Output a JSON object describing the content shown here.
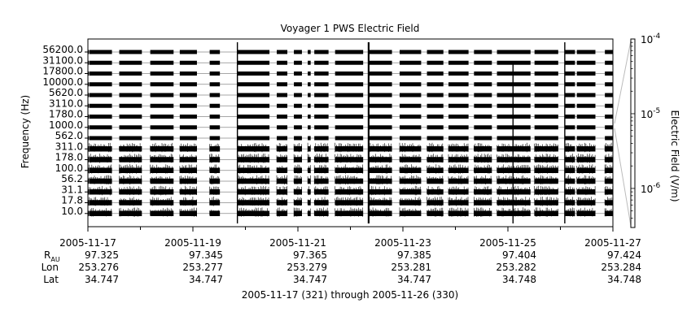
{
  "chart_data": {
    "type": "line",
    "title": "Voyager 1 PWS Electric Field",
    "ylabel": "Frequency (Hz)",
    "y_ticks": [
      "56200.0",
      "31100.0",
      "17800.0",
      "10000.0",
      "5620.0",
      "3110.0",
      "1780.0",
      "1000.0",
      "562.0",
      "311.0",
      "178.0",
      "100.0",
      "56.2",
      "31.1",
      "17.8",
      "10.0"
    ],
    "channels": [
      "56200.0",
      "31100.0",
      "17800.0",
      "10000.0",
      "5620.0",
      "3110.0",
      "1780.0",
      "1000.0",
      "562.0",
      "311.0",
      "178.0",
      "100.0",
      "56.2",
      "31.1",
      "17.8",
      "10.0"
    ],
    "xlim": [
      "2005-11-17",
      "2005-11-27"
    ],
    "x_ticks": [
      "2005-11-17",
      "2005-11-19",
      "2005-11-21",
      "2005-11-23",
      "2005-11-25",
      "2005-11-27"
    ],
    "data_segments": [
      [
        "2005-11-17 00:00",
        "2005-11-17 00:20"
      ],
      [
        "2005-11-17 00:35",
        "2005-11-17 11:00"
      ],
      [
        "2005-11-17 14:20",
        "2005-11-18 00:40"
      ],
      [
        "2005-11-18 04:30",
        "2005-11-18 15:10"
      ],
      [
        "2005-11-18 18:00",
        "2005-11-19 01:50"
      ],
      [
        "2005-11-19 07:40",
        "2005-11-19 12:20"
      ],
      [
        "2005-11-19 20:20",
        "2005-11-20 11:00"
      ],
      [
        "2005-11-20 14:20",
        "2005-11-20 19:10"
      ],
      [
        "2005-11-20 22:10",
        "2005-11-21 01:50"
      ],
      [
        "2005-11-21 04:30",
        "2005-11-21 05:50"
      ],
      [
        "2005-11-21 07:30",
        "2005-11-21 14:00"
      ],
      [
        "2005-11-21 17:00",
        "2005-11-22 05:50"
      ],
      [
        "2005-11-22 08:30",
        "2005-11-22 19:00"
      ],
      [
        "2005-11-22 22:30",
        "2005-11-23 08:20"
      ],
      [
        "2005-11-23 11:00",
        "2005-11-23 18:30"
      ],
      [
        "2005-11-23 20:50",
        "2005-11-24 06:00"
      ],
      [
        "2005-11-24 08:30",
        "2005-11-24 16:40"
      ],
      [
        "2005-11-24 19:00",
        "2005-11-25 10:20"
      ],
      [
        "2005-11-25 12:10",
        "2005-11-25 23:00"
      ],
      [
        "2005-11-26 02:00",
        "2005-11-26 06:40"
      ],
      [
        "2005-11-26 07:30",
        "2005-11-26 16:00"
      ],
      [
        "2005-11-26 20:20",
        "2005-11-27 00:00"
      ]
    ],
    "spikes": [
      "2005-11-19 20:20",
      "2005-11-22 08:20",
      "2005-11-25 02:20",
      "2005-11-26 02:00"
    ],
    "colorbar": {
      "label": "Electric Field (V/m)",
      "scale": "log",
      "range": [
        3e-07,
        0.0001
      ],
      "ticks": [
        {
          "value": 0.0001,
          "base": "10",
          "exp": "-4"
        },
        {
          "value": 1e-05,
          "base": "10",
          "exp": "-5"
        },
        {
          "value": 1e-06,
          "base": "10",
          "exp": "-6"
        }
      ]
    },
    "ephemeris": {
      "r_label_main": "R",
      "r_label_sub": "AU",
      "lon_label": "Lon",
      "lat_label": "Lat",
      "r": [
        "97.325",
        "97.345",
        "97.365",
        "97.385",
        "97.404",
        "97.424"
      ],
      "lon": [
        "253.276",
        "253.277",
        "253.279",
        "253.281",
        "253.282",
        "253.284"
      ],
      "lat": [
        "34.747",
        "34.747",
        "34.747",
        "34.747",
        "34.748",
        "34.748"
      ]
    },
    "footer": "2005-11-17 (321) through 2005-11-26 (330)"
  }
}
